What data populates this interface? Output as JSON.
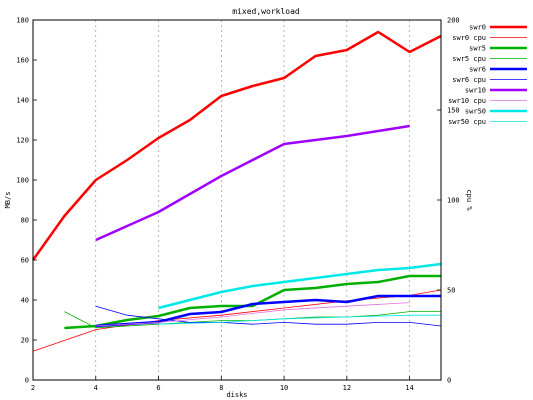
{
  "chart_data": {
    "type": "line",
    "title": "mixed,workload",
    "xlabel": "disks",
    "ylabel": "MB/s",
    "y2label": "cpu %",
    "xlim": [
      2,
      15
    ],
    "ylim": [
      0,
      180
    ],
    "y2lim": [
      0,
      200
    ],
    "xticks": [
      2,
      4,
      6,
      8,
      10,
      12,
      14
    ],
    "yticks": [
      0,
      20,
      40,
      60,
      80,
      100,
      120,
      140,
      160,
      180
    ],
    "y2ticks": [
      0,
      50,
      100,
      150,
      200
    ],
    "grid": "vertical dashed",
    "legend": "top-right",
    "series": [
      {
        "name": "swr0",
        "axis": "left",
        "color": "#ff0000",
        "width": 2.5,
        "x": [
          2,
          3,
          4,
          5,
          6,
          7,
          8,
          9,
          10,
          11,
          12,
          13,
          14,
          15
        ],
        "y": [
          60,
          82,
          100,
          110,
          121,
          130,
          142,
          147,
          151,
          162,
          165,
          174,
          164,
          172
        ]
      },
      {
        "name": "swr0 cpu",
        "axis": "right",
        "color": "#ff0000",
        "width": 0.8,
        "x": [
          2,
          4,
          6,
          8,
          10,
          12,
          14,
          15
        ],
        "y": [
          16,
          28,
          33,
          36,
          40,
          44,
          47,
          50
        ]
      },
      {
        "name": "swr5",
        "axis": "left",
        "color": "#00b000",
        "width": 2.5,
        "x": [
          3,
          4,
          5,
          6,
          7,
          8,
          9,
          10,
          11,
          12,
          13,
          14,
          15
        ],
        "y": [
          26,
          27,
          30,
          32,
          36,
          37,
          37,
          45,
          46,
          48,
          49,
          52,
          52
        ]
      },
      {
        "name": "swr5 cpu",
        "axis": "right",
        "color": "#00b000",
        "width": 0.8,
        "x": [
          3,
          4,
          5,
          6,
          7,
          8,
          9,
          10,
          11,
          12,
          13,
          14,
          15
        ],
        "y": [
          38,
          29,
          30,
          31,
          32,
          33,
          33,
          34,
          35,
          35,
          36,
          38,
          38
        ]
      },
      {
        "name": "swr6",
        "axis": "left",
        "color": "#0000ff",
        "width": 2.5,
        "x": [
          4,
          5,
          6,
          7,
          8,
          9,
          10,
          11,
          12,
          13,
          14,
          15
        ],
        "y": [
          27,
          28,
          29,
          33,
          34,
          38,
          39,
          40,
          39,
          42,
          42,
          42
        ]
      },
      {
        "name": "swr6 cpu",
        "axis": "right",
        "color": "#0000ff",
        "width": 0.8,
        "x": [
          4,
          5,
          6,
          7,
          8,
          9,
          10,
          11,
          12,
          13,
          14,
          15
        ],
        "y": [
          41,
          36,
          34,
          32,
          32,
          31,
          32,
          31,
          31,
          32,
          32,
          30
        ]
      },
      {
        "name": "swr10",
        "axis": "left",
        "color": "#a000ff",
        "width": 2.5,
        "x": [
          4,
          6,
          8,
          10,
          12,
          14
        ],
        "y": [
          70,
          84,
          102,
          118,
          122,
          127
        ]
      },
      {
        "name": "swr10 cpu",
        "axis": "right",
        "color": "#e070e0",
        "width": 0.8,
        "x": [
          4,
          6,
          8,
          10,
          12,
          14
        ],
        "y": [
          30,
          32,
          35,
          39,
          41,
          43
        ]
      },
      {
        "name": "swr50",
        "axis": "left",
        "color": "#00e8e8",
        "width": 2.5,
        "x": [
          6,
          7,
          8,
          9,
          10,
          11,
          12,
          13,
          14,
          15
        ],
        "y": [
          36,
          40,
          44,
          47,
          49,
          51,
          53,
          55,
          56,
          58
        ]
      },
      {
        "name": "swr50 cpu",
        "axis": "right",
        "color": "#00e8e8",
        "width": 0.8,
        "x": [
          6,
          8,
          10,
          12,
          14,
          15
        ],
        "y": [
          31,
          32,
          34,
          35,
          36,
          36
        ]
      }
    ]
  }
}
